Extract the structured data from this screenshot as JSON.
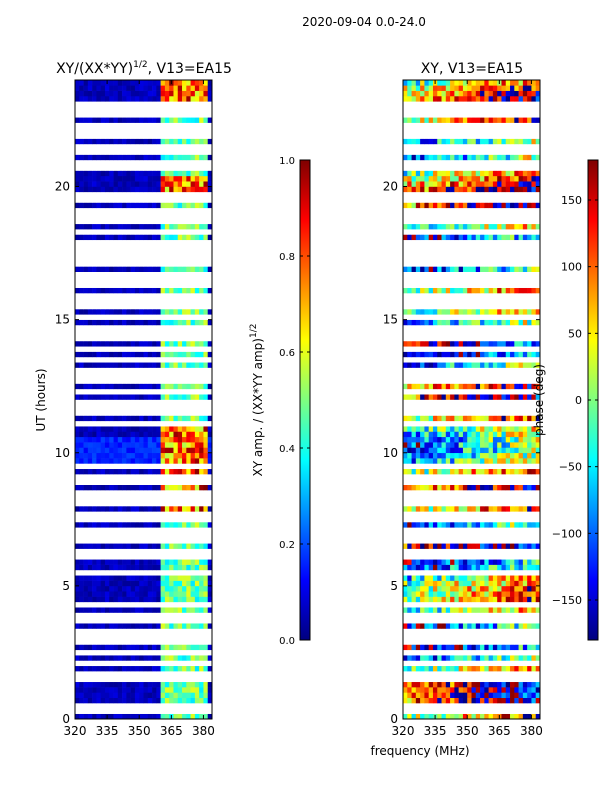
{
  "figure": {
    "suptitle": "2020-09-04 0.0-24.0"
  },
  "colors": {
    "jet": [
      "#00007f",
      "#0000ff",
      "#007fff",
      "#00ffff",
      "#7fff7f",
      "#ffff00",
      "#ff7f00",
      "#ff0000",
      "#7f0000"
    ],
    "flag_white": "#ffffff"
  },
  "chart_data": [
    {
      "type": "heatmap",
      "title_base": "XY/(XX*YY)",
      "title_exp": "1/2",
      "title_suffix": ", V13=EA15",
      "ylabel": "UT (hours)",
      "xlabel": "",
      "xlim": [
        320,
        384
      ],
      "ylim": [
        0,
        24
      ],
      "xticks": [
        320,
        335,
        350,
        365,
        380
      ],
      "yticks": [
        0,
        5,
        10,
        15,
        20
      ],
      "quantity": "normalized XY amplitude",
      "bright_channel_ranges_mhz": [
        [
          361,
          363
        ],
        [
          364,
          366
        ],
        [
          367,
          369
        ],
        [
          370,
          372
        ],
        [
          373,
          375
        ],
        [
          376,
          378
        ],
        [
          379,
          381
        ]
      ],
      "colorbar": {
        "label_base": "XY amp. / (XX*YY amp)",
        "label_exp": "1/2",
        "range": [
          0.0,
          1.0
        ],
        "ticks": [
          "0.0",
          "0.2",
          "0.4",
          "0.6",
          "0.8",
          "1.0"
        ]
      }
    },
    {
      "type": "heatmap",
      "title": "XY, V13=EA15",
      "xlabel": "frequency (MHz)",
      "xlim": [
        320,
        384
      ],
      "ylim": [
        0,
        24
      ],
      "xticks": [
        320,
        335,
        350,
        365,
        380
      ],
      "yticks": [
        0,
        5,
        10,
        15,
        20
      ],
      "quantity": "XY phase (deg)",
      "colorbar": {
        "label": "phase (deg)",
        "range": [
          -180,
          180
        ],
        "ticks": [
          "150",
          "100",
          "50",
          "0",
          "−50",
          "−100",
          "−150"
        ]
      }
    }
  ],
  "flagged_hours": [
    0.3,
    0.45,
    1.45,
    1.55,
    2.05,
    2.4,
    2.7,
    3.05,
    3.3,
    3.55,
    3.7,
    4.15,
    5.4,
    6.0,
    6.25,
    6.55,
    6.8,
    7.05,
    7.4,
    7.65,
    7.95,
    8.2,
    8.4,
    8.85,
    9.05,
    9.35,
    10.9,
    11.05,
    11.3,
    11.6,
    11.85,
    12.2,
    12.5,
    12.75,
    13.05,
    13.4,
    13.75,
    14.1,
    14.3,
    14.7,
    15.0,
    15.35,
    15.55,
    15.75,
    16.2,
    16.4,
    16.65,
    16.95,
    17.15,
    17.35,
    17.7,
    17.9,
    18.2,
    18.5,
    18.8,
    19.05,
    19.4,
    19.55,
    19.7,
    20.6,
    20.9,
    21.2,
    21.45,
    21.75,
    22.0,
    22.2,
    22.55,
    22.75,
    22.95
  ]
}
